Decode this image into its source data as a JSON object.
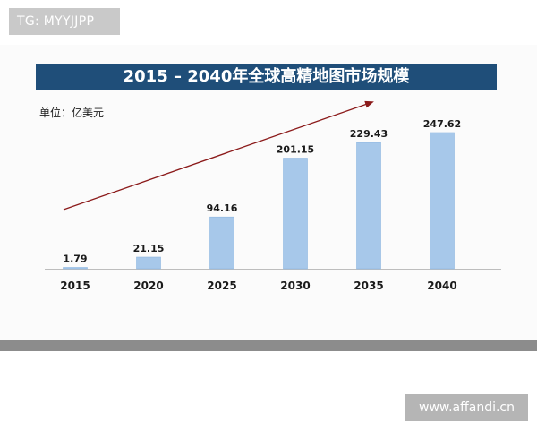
{
  "watermark_top": "TG: MYYJJPP",
  "watermark_bottom": "www.affandi.cn",
  "colors": {
    "title_bar": "#1f4e79",
    "bar_fill": "#a7c8ea",
    "bar_stroke": "#8db6e0",
    "arrow": "#8b1a1a"
  },
  "chart_data": {
    "type": "bar",
    "title": "2015 – 2040年全球高精地图市场规模",
    "unit_label": "单位：亿美元",
    "categories": [
      "2015",
      "2020",
      "2025",
      "2030",
      "2035",
      "2040"
    ],
    "values": [
      1.79,
      21.15,
      94.16,
      201.15,
      229.43,
      247.62
    ],
    "data_labels": [
      "1.79",
      "21.15",
      "94.16",
      "201.15",
      "229.43",
      "247.62"
    ],
    "ylim": [
      0,
      247.62
    ],
    "grid": false,
    "legend": "none",
    "annotations": [
      "rising trend arrow"
    ]
  }
}
